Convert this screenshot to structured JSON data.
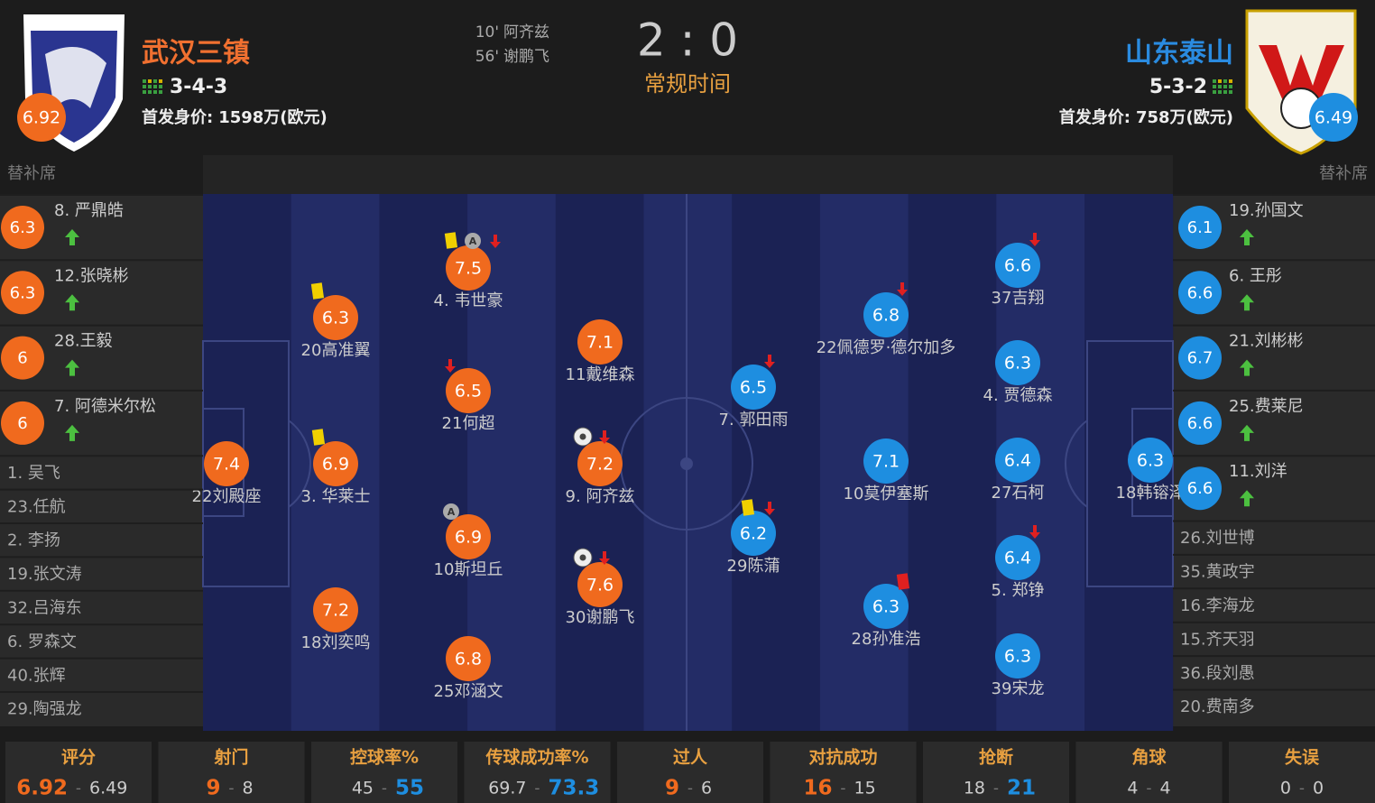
{
  "header": {
    "home": {
      "name": "武汉三镇",
      "formation": "3-4-3",
      "rating": "6.92",
      "value_label": "首发身价:",
      "value": "1598万(欧元)"
    },
    "away": {
      "name": "山东泰山",
      "formation": "5-3-2",
      "rating": "6.49",
      "value_label": "首发身价:",
      "value": "758万(欧元)"
    },
    "goals": [
      {
        "minute": "10'",
        "player": "阿齐兹"
      },
      {
        "minute": "56'",
        "player": "谢鹏飞"
      }
    ],
    "score": "2 : 0",
    "status": "常规时间"
  },
  "home_bench": {
    "label": "替补席",
    "players": [
      {
        "name": "8. 严鼎皓",
        "rating": "6.3"
      },
      {
        "name": "12.张晓彬",
        "rating": "6.3"
      },
      {
        "name": "28.王毅",
        "rating": "6"
      },
      {
        "name": "7. 阿德米尔松",
        "rating": "6"
      },
      {
        "name": "1. 吴飞"
      },
      {
        "name": "23.任航"
      },
      {
        "name": "2. 李扬"
      },
      {
        "name": "19.张文涛"
      },
      {
        "name": "32.吕海东"
      },
      {
        "name": "6. 罗森文"
      },
      {
        "name": "40.张辉"
      },
      {
        "name": "29.陶强龙"
      }
    ]
  },
  "away_bench": {
    "label": "替补席",
    "players": [
      {
        "name": "19.孙国文",
        "rating": "6.1"
      },
      {
        "name": "6. 王彤",
        "rating": "6.6"
      },
      {
        "name": "21.刘彬彬",
        "rating": "6.7"
      },
      {
        "name": "25.费莱尼",
        "rating": "6.6"
      },
      {
        "name": "11.刘洋",
        "rating": "6.6"
      },
      {
        "name": "26.刘世博"
      },
      {
        "name": "35.黄政宇"
      },
      {
        "name": "16.李海龙"
      },
      {
        "name": "15.齐天羽"
      },
      {
        "name": "36.段刘愚"
      },
      {
        "name": "20.费南多"
      }
    ]
  },
  "lineup": {
    "captain_label": "A",
    "home": [
      {
        "name": "22刘殿座",
        "rating": "7.4"
      },
      {
        "name": "20高准翼",
        "rating": "6.3"
      },
      {
        "name": "3. 华莱士",
        "rating": "6.9"
      },
      {
        "name": "18刘奕鸣",
        "rating": "7.2"
      },
      {
        "name": "4. 韦世豪",
        "rating": "7.5"
      },
      {
        "name": "21何超",
        "rating": "6.5"
      },
      {
        "name": "10斯坦丘",
        "rating": "6.9"
      },
      {
        "name": "25邓涵文",
        "rating": "6.8"
      },
      {
        "name": "11戴维森",
        "rating": "7.1"
      },
      {
        "name": "9. 阿齐兹",
        "rating": "7.2"
      },
      {
        "name": "30谢鹏飞",
        "rating": "7.6"
      }
    ],
    "away": [
      {
        "name": "18韩镕泽",
        "rating": "6.3"
      },
      {
        "name": "37吉翔",
        "rating": "6.6"
      },
      {
        "name": "4. 贾德森",
        "rating": "6.3"
      },
      {
        "name": "27石柯",
        "rating": "6.4"
      },
      {
        "name": "5. 郑铮",
        "rating": "6.4"
      },
      {
        "name": "39宋龙",
        "rating": "6.3"
      },
      {
        "name": "22佩德罗·德尔加多",
        "rating": "6.8"
      },
      {
        "name": "10莫伊塞斯",
        "rating": "7.1"
      },
      {
        "name": "28孙准浩",
        "rating": "6.3"
      },
      {
        "name": "7. 郭田雨",
        "rating": "6.5"
      },
      {
        "name": "29陈蒲",
        "rating": "6.2"
      }
    ]
  },
  "stats": {
    "separator": "-",
    "items": [
      {
        "label": "评分",
        "home": "6.92",
        "away": "6.49"
      },
      {
        "label": "射门",
        "home": "9",
        "away": "8"
      },
      {
        "label": "控球率%",
        "home": "45",
        "away": "55"
      },
      {
        "label": "传球成功率%",
        "home": "69.7",
        "away": "73.3"
      },
      {
        "label": "过人",
        "home": "9",
        "away": "6"
      },
      {
        "label": "对抗成功",
        "home": "16",
        "away": "15"
      },
      {
        "label": "抢断",
        "home": "18",
        "away": "21"
      },
      {
        "label": "角球",
        "home": "4",
        "away": "4"
      },
      {
        "label": "失误",
        "home": "0",
        "away": "0"
      }
    ]
  }
}
